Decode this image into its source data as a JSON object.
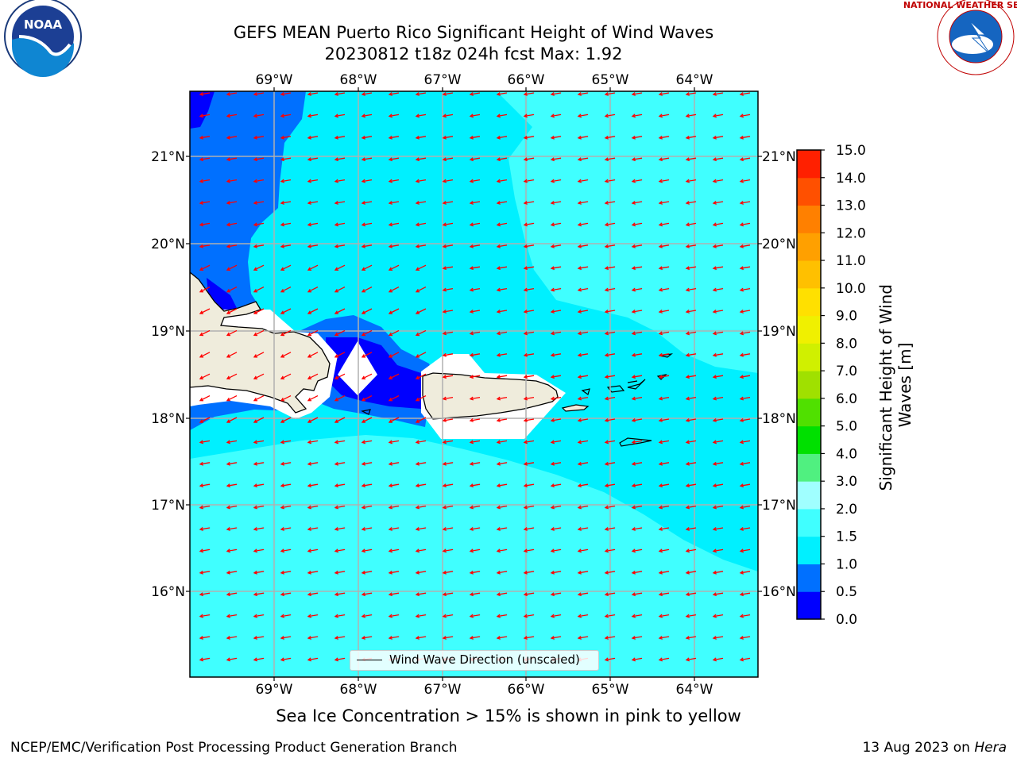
{
  "title": {
    "line1": "GEFS MEAN Puerto Rico Significant Height of Wind Waves",
    "line2": "20230812 t18z 024h fcst   Max: 1.92"
  },
  "logos": {
    "left": "NOAA",
    "right": "NATIONAL WEATHER SERVICE"
  },
  "axes": {
    "lon_labels": [
      "69°W",
      "68°W",
      "67°W",
      "66°W",
      "65°W",
      "64°W"
    ],
    "lat_labels": [
      "21°N",
      "20°N",
      "19°N",
      "18°N",
      "17°N",
      "16°N"
    ]
  },
  "colorbar": {
    "title": "Significant Height of Wind Waves [m]",
    "title_line1": "Significant Height of Wind",
    "title_line2": "Waves [m]",
    "levels": [
      "0.0",
      "0.5",
      "1.0",
      "1.5",
      "2.0",
      "3.0",
      "4.0",
      "5.0",
      "6.0",
      "7.0",
      "8.0",
      "9.0",
      "10.0",
      "11.0",
      "12.0",
      "13.0",
      "14.0",
      "15.0"
    ],
    "colors": [
      "#0000ff",
      "#0070ff",
      "#00f0ff",
      "#40ffff",
      "#a0ffff",
      "#50f080",
      "#00e000",
      "#50e000",
      "#a0e000",
      "#d0f000",
      "#f0f000",
      "#ffe000",
      "#ffc000",
      "#ffa000",
      "#ff8000",
      "#ff5000",
      "#ff2000"
    ]
  },
  "legend": {
    "label": "Wind Wave Direction (unscaled)"
  },
  "colors": {
    "land": "#efecdc",
    "arrow": "#ff0000",
    "grid": "#b0b0b0"
  },
  "caption": "Sea Ice Concentration > 15% is shown in pink to yellow",
  "footer": {
    "left": "NCEP/EMC/Verification Post Processing Product Generation Branch",
    "right_prefix": "13 Aug 2023 on ",
    "right_host": "Hera"
  }
}
